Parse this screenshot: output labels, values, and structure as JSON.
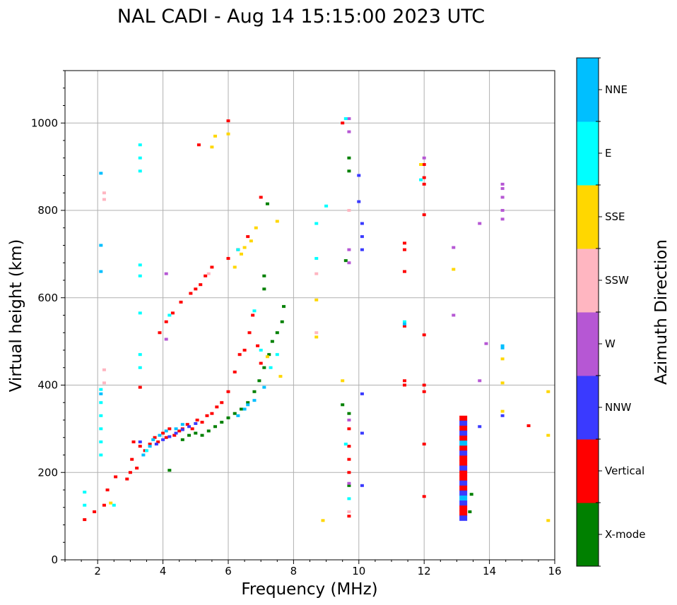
{
  "chart_data": {
    "type": "scatter",
    "title": "NAL CADI - Aug 14 15:15:00 2023 UTC",
    "xlabel": "Frequency (MHz)",
    "ylabel": "Virtual height (km)",
    "xlim": [
      1,
      16
    ],
    "ylim": [
      0,
      1120
    ],
    "xticks": [
      2,
      4,
      6,
      8,
      10,
      12,
      14,
      16
    ],
    "yticks": [
      0,
      200,
      400,
      600,
      800,
      1000
    ],
    "grid": true,
    "colorbar": {
      "label": "Azimuth Direction",
      "categories": [
        {
          "name": "X-mode",
          "color": "#008000"
        },
        {
          "name": "Vertical",
          "color": "#ff0000"
        },
        {
          "name": "NNW",
          "color": "#3a3aff"
        },
        {
          "name": "W",
          "color": "#b657d4"
        },
        {
          "name": "SSW",
          "color": "#ffb6c1"
        },
        {
          "name": "SSE",
          "color": "#ffd700"
        },
        {
          "name": "E",
          "color": "#00ffff"
        },
        {
          "name": "NNE",
          "color": "#00bfff"
        }
      ]
    },
    "series": [
      {
        "name": "Vertical",
        "points": [
          [
            1.6,
            92
          ],
          [
            1.9,
            110
          ],
          [
            2.2,
            125
          ],
          [
            2.3,
            160
          ],
          [
            2.55,
            190
          ],
          [
            2.9,
            185
          ],
          [
            3.0,
            200
          ],
          [
            3.05,
            230
          ],
          [
            3.1,
            270
          ],
          [
            3.2,
            210
          ],
          [
            3.3,
            260
          ],
          [
            3.45,
            250
          ],
          [
            3.6,
            265
          ],
          [
            3.75,
            280
          ],
          [
            3.85,
            270
          ],
          [
            4.0,
            290
          ],
          [
            4.1,
            280
          ],
          [
            4.2,
            300
          ],
          [
            4.35,
            285
          ],
          [
            4.5,
            295
          ],
          [
            4.6,
            300
          ],
          [
            4.75,
            310
          ],
          [
            4.9,
            300
          ],
          [
            5.05,
            320
          ],
          [
            5.2,
            315
          ],
          [
            5.35,
            330
          ],
          [
            5.5,
            335
          ],
          [
            5.65,
            350
          ],
          [
            5.8,
            360
          ],
          [
            6.0,
            385
          ],
          [
            6.2,
            430
          ],
          [
            6.35,
            470
          ],
          [
            6.5,
            480
          ],
          [
            6.65,
            520
          ],
          [
            6.75,
            560
          ],
          [
            6.9,
            490
          ],
          [
            7.0,
            450
          ],
          [
            3.9,
            520
          ],
          [
            4.1,
            545
          ],
          [
            4.3,
            565
          ],
          [
            4.55,
            590
          ],
          [
            4.85,
            610
          ],
          [
            5.0,
            620
          ],
          [
            5.15,
            630
          ],
          [
            5.3,
            650
          ],
          [
            5.5,
            670
          ],
          [
            6.0,
            690
          ],
          [
            6.3,
            710
          ],
          [
            6.6,
            740
          ],
          [
            3.3,
            395
          ],
          [
            5.1,
            950
          ],
          [
            6.0,
            1005
          ],
          [
            7.0,
            830
          ],
          [
            9.5,
            1000
          ],
          [
            9.7,
            100
          ],
          [
            9.7,
            200
          ],
          [
            9.7,
            230
          ],
          [
            9.7,
            260
          ],
          [
            9.7,
            300
          ],
          [
            11.4,
            400
          ],
          [
            11.4,
            410
          ],
          [
            11.4,
            535
          ],
          [
            11.4,
            660
          ],
          [
            11.4,
            710
          ],
          [
            11.4,
            725
          ],
          [
            12.0,
            145
          ],
          [
            12.0,
            265
          ],
          [
            12.0,
            385
          ],
          [
            12.0,
            400
          ],
          [
            12.0,
            515
          ],
          [
            12.0,
            790
          ],
          [
            12.0,
            860
          ],
          [
            12.0,
            875
          ],
          [
            12.0,
            905
          ],
          [
            15.2,
            307
          ]
        ]
      },
      {
        "name": "X-mode",
        "points": [
          [
            4.2,
            205
          ],
          [
            4.6,
            275
          ],
          [
            4.8,
            285
          ],
          [
            5.0,
            290
          ],
          [
            5.2,
            285
          ],
          [
            5.4,
            295
          ],
          [
            5.6,
            305
          ],
          [
            5.8,
            315
          ],
          [
            6.0,
            325
          ],
          [
            6.2,
            335
          ],
          [
            6.4,
            345
          ],
          [
            6.6,
            360
          ],
          [
            6.8,
            385
          ],
          [
            6.95,
            410
          ],
          [
            7.1,
            440
          ],
          [
            7.25,
            470
          ],
          [
            7.35,
            500
          ],
          [
            7.5,
            520
          ],
          [
            7.65,
            545
          ],
          [
            7.7,
            580
          ],
          [
            7.1,
            620
          ],
          [
            7.1,
            650
          ],
          [
            7.2,
            815
          ],
          [
            9.6,
            685
          ],
          [
            9.5,
            355
          ],
          [
            9.7,
            335
          ],
          [
            9.7,
            170
          ],
          [
            9.7,
            890
          ],
          [
            9.7,
            920
          ],
          [
            13.4,
            110
          ],
          [
            13.45,
            150
          ]
        ]
      },
      {
        "name": "NNW",
        "points": [
          [
            3.3,
            270
          ],
          [
            3.8,
            265
          ],
          [
            4.0,
            275
          ],
          [
            4.2,
            282
          ],
          [
            4.4,
            290
          ],
          [
            4.6,
            298
          ],
          [
            4.8,
            305
          ],
          [
            5.0,
            312
          ],
          [
            10.0,
            880
          ],
          [
            10.0,
            820
          ],
          [
            10.1,
            770
          ],
          [
            10.1,
            740
          ],
          [
            10.1,
            710
          ],
          [
            10.1,
            380
          ],
          [
            10.1,
            290
          ],
          [
            10.1,
            170
          ],
          [
            13.7,
            305
          ],
          [
            14.4,
            330
          ]
        ]
      },
      {
        "name": "W",
        "points": [
          [
            4.1,
            655
          ],
          [
            4.1,
            505
          ],
          [
            9.7,
            1010
          ],
          [
            9.7,
            980
          ],
          [
            9.7,
            710
          ],
          [
            9.7,
            680
          ],
          [
            9.7,
            320
          ],
          [
            9.7,
            175
          ],
          [
            12.0,
            920
          ],
          [
            12.9,
            715
          ],
          [
            12.9,
            560
          ],
          [
            13.7,
            770
          ],
          [
            13.9,
            495
          ],
          [
            13.7,
            410
          ],
          [
            14.4,
            780
          ],
          [
            14.4,
            800
          ],
          [
            14.4,
            830
          ],
          [
            14.4,
            850
          ],
          [
            14.4,
            860
          ]
        ]
      },
      {
        "name": "SSW",
        "points": [
          [
            2.2,
            840
          ],
          [
            2.2,
            825
          ],
          [
            2.2,
            435
          ],
          [
            2.2,
            405
          ],
          [
            5.4,
            655
          ],
          [
            8.7,
            655
          ],
          [
            8.7,
            520
          ],
          [
            9.7,
            800
          ],
          [
            9.7,
            110
          ]
        ]
      },
      {
        "name": "SSE",
        "points": [
          [
            2.4,
            130
          ],
          [
            5.5,
            945
          ],
          [
            5.6,
            970
          ],
          [
            6.0,
            975
          ],
          [
            6.2,
            670
          ],
          [
            6.4,
            700
          ],
          [
            6.5,
            715
          ],
          [
            6.7,
            730
          ],
          [
            6.85,
            760
          ],
          [
            7.5,
            775
          ],
          [
            7.2,
            465
          ],
          [
            7.6,
            420
          ],
          [
            8.7,
            595
          ],
          [
            8.7,
            510
          ],
          [
            8.9,
            90
          ],
          [
            9.5,
            410
          ],
          [
            11.9,
            905
          ],
          [
            12.9,
            665
          ],
          [
            14.4,
            460
          ],
          [
            14.4,
            405
          ],
          [
            14.4,
            340
          ],
          [
            15.8,
            385
          ],
          [
            15.8,
            285
          ],
          [
            15.8,
            90
          ]
        ]
      },
      {
        "name": "E",
        "points": [
          [
            1.6,
            125
          ],
          [
            1.6,
            155
          ],
          [
            2.1,
            360
          ],
          [
            2.1,
            330
          ],
          [
            2.1,
            300
          ],
          [
            2.1,
            270
          ],
          [
            2.1,
            240
          ],
          [
            2.1,
            390
          ],
          [
            2.5,
            125
          ],
          [
            3.3,
            440
          ],
          [
            3.3,
            470
          ],
          [
            3.3,
            890
          ],
          [
            3.3,
            920
          ],
          [
            3.3,
            950
          ],
          [
            3.3,
            675
          ],
          [
            3.3,
            650
          ],
          [
            3.3,
            565
          ],
          [
            3.5,
            250
          ],
          [
            4.2,
            560
          ],
          [
            6.3,
            710
          ],
          [
            6.8,
            570
          ],
          [
            7.0,
            480
          ],
          [
            7.3,
            440
          ],
          [
            7.5,
            470
          ],
          [
            8.7,
            770
          ],
          [
            8.7,
            690
          ],
          [
            9.0,
            810
          ],
          [
            9.6,
            1010
          ],
          [
            9.6,
            265
          ],
          [
            9.7,
            140
          ],
          [
            11.4,
            545
          ],
          [
            11.9,
            870
          ]
        ]
      },
      {
        "name": "NNE",
        "points": [
          [
            2.1,
            885
          ],
          [
            2.1,
            720
          ],
          [
            2.1,
            660
          ],
          [
            2.1,
            380
          ],
          [
            3.4,
            240
          ],
          [
            3.6,
            260
          ],
          [
            3.7,
            275
          ],
          [
            3.9,
            285
          ],
          [
            4.1,
            295
          ],
          [
            4.4,
            300
          ],
          [
            4.6,
            310
          ],
          [
            6.3,
            330
          ],
          [
            6.5,
            345
          ],
          [
            6.6,
            355
          ],
          [
            6.8,
            365
          ],
          [
            7.1,
            395
          ],
          [
            11.4,
            540
          ],
          [
            14.4,
            490
          ],
          [
            14.4,
            485
          ]
        ]
      }
    ]
  }
}
